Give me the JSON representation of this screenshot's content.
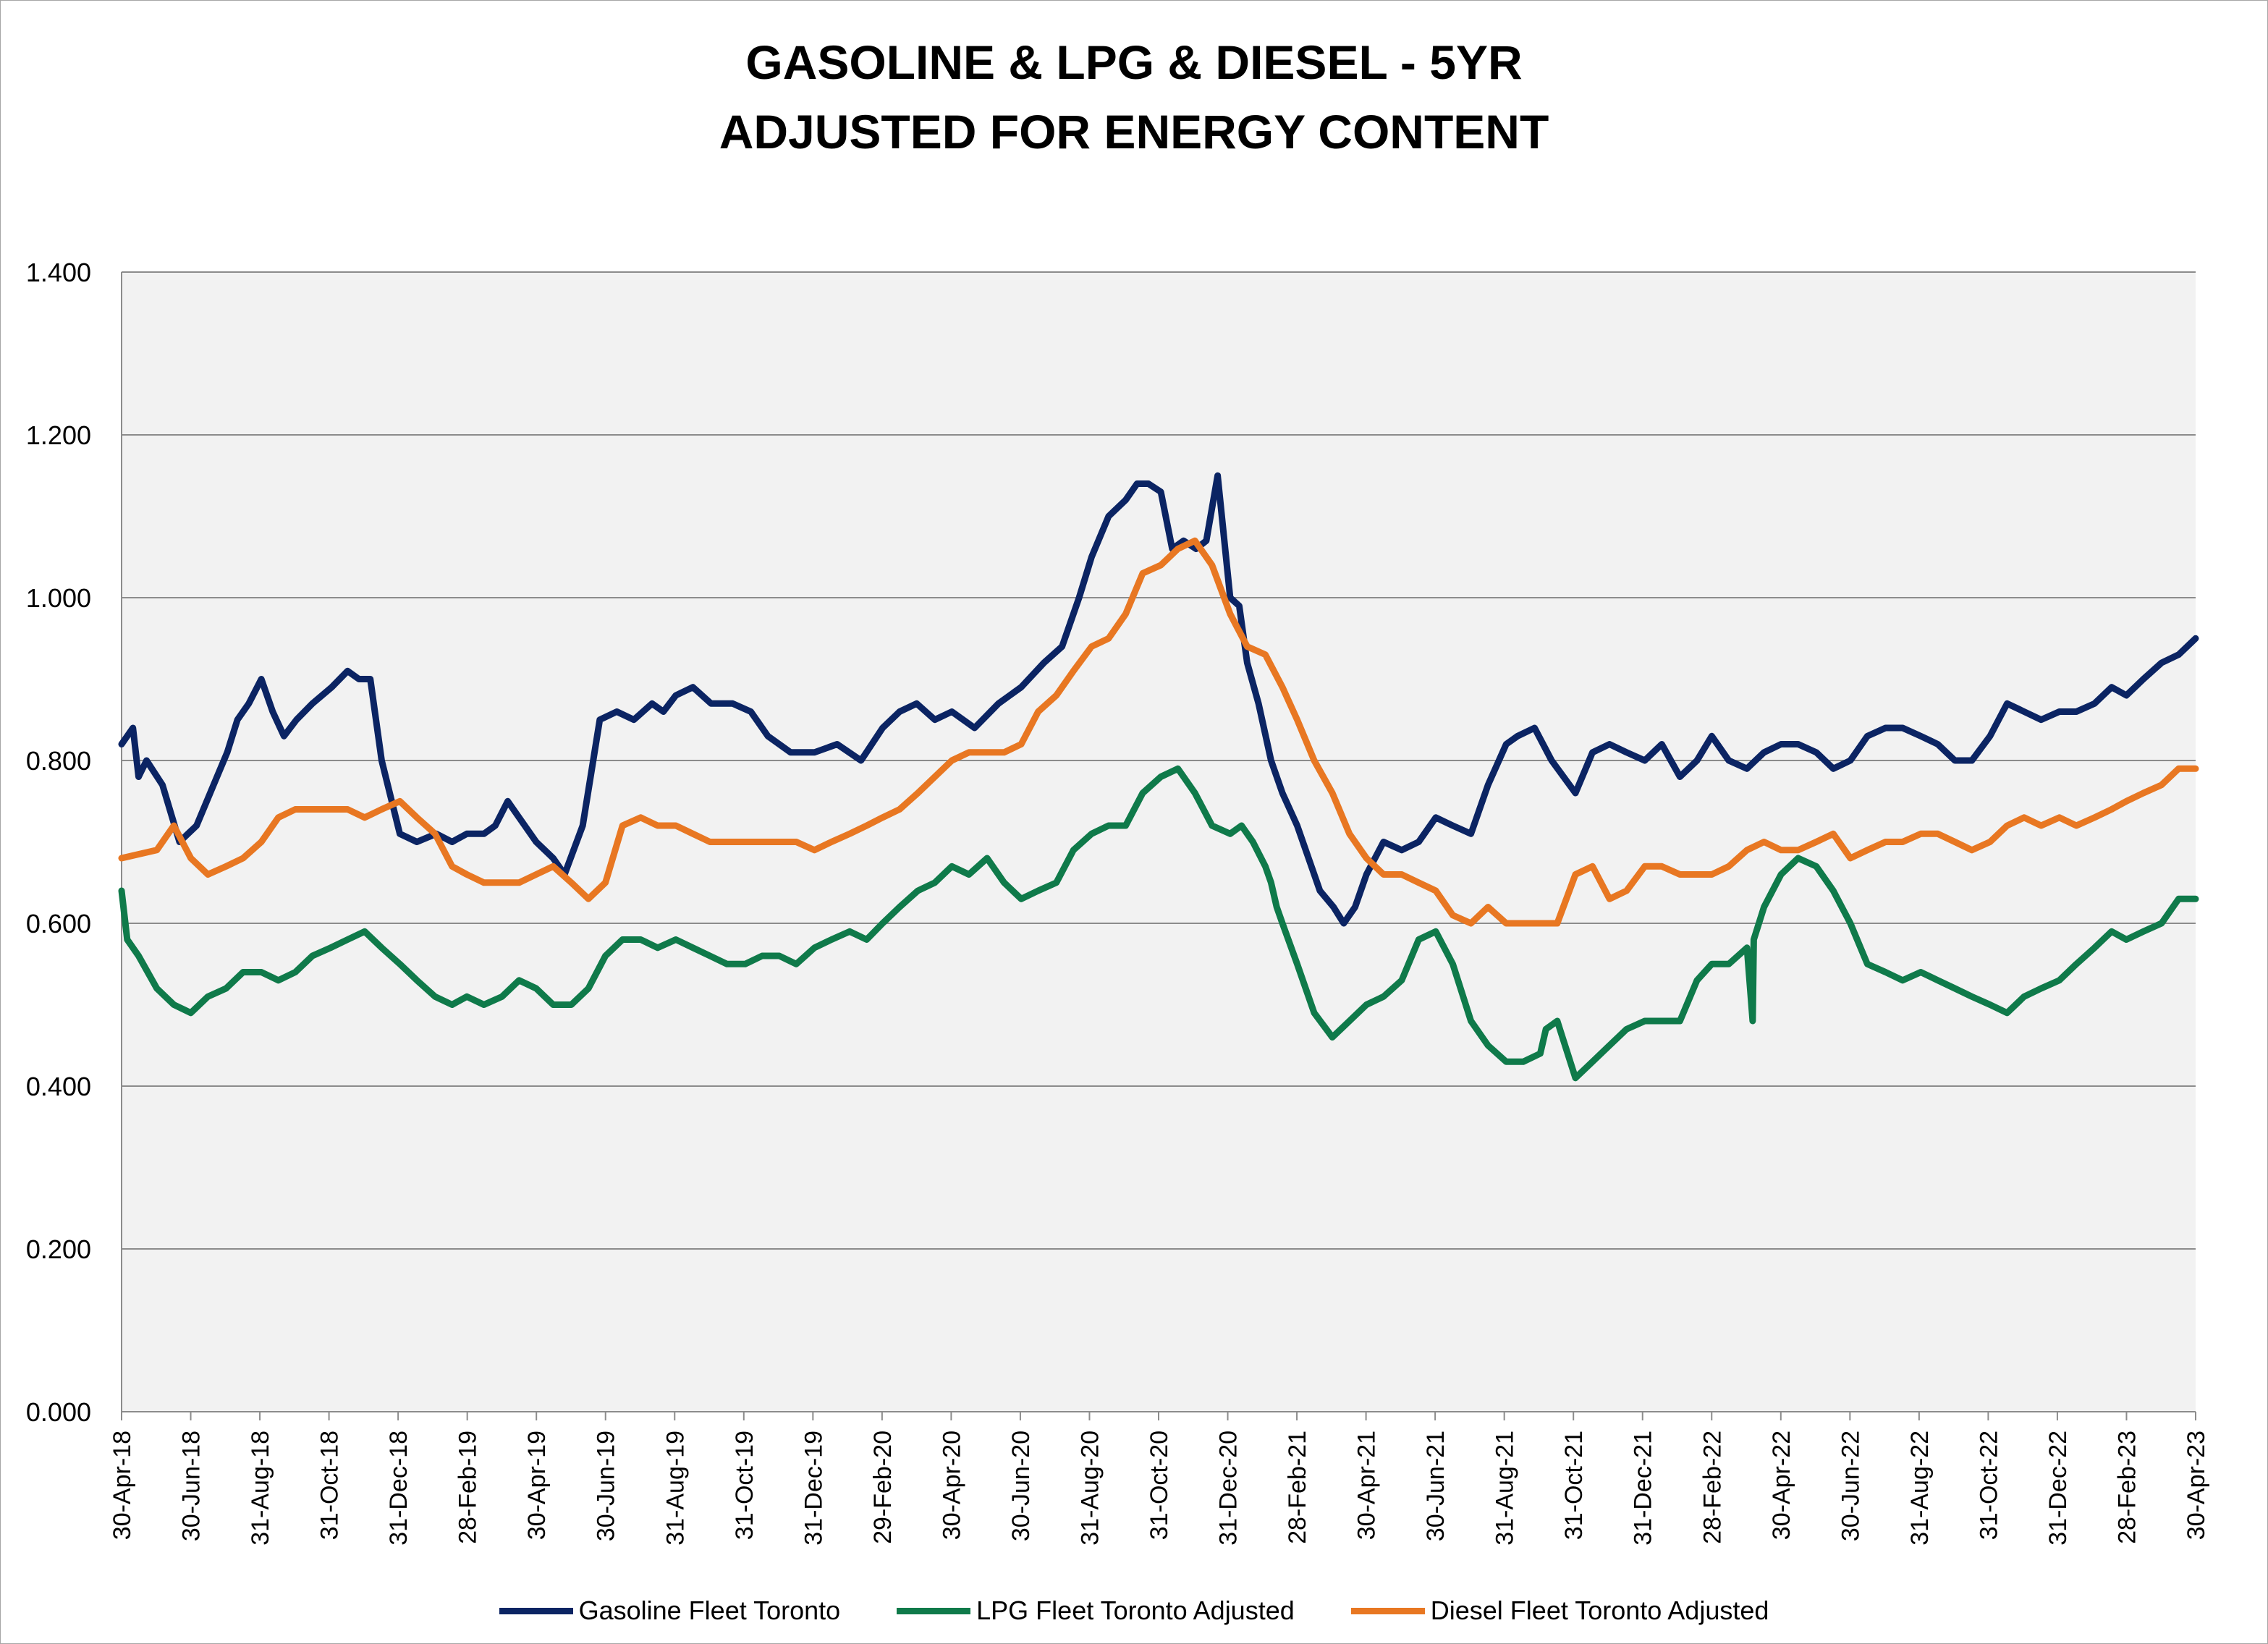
{
  "chart_data": {
    "type": "line",
    "title": "GASOLINE & LPG & DIESEL - 5YR",
    "subtitle": "ADJUSTED FOR ENERGY CONTENT",
    "xlabel": "",
    "ylabel": "",
    "ylim": [
      0,
      1.4
    ],
    "yticks": [
      "0.000",
      "0.200",
      "0.400",
      "0.600",
      "0.800",
      "1.000",
      "1.200",
      "1.400"
    ],
    "xticks": [
      "30-Apr-18",
      "30-Jun-18",
      "31-Aug-18",
      "31-Oct-18",
      "31-Dec-18",
      "28-Feb-19",
      "30-Apr-19",
      "30-Jun-19",
      "31-Aug-19",
      "31-Oct-19",
      "31-Dec-19",
      "29-Feb-20",
      "30-Apr-20",
      "30-Jun-20",
      "31-Aug-20",
      "31-Oct-20",
      "31-Dec-20",
      "28-Feb-21",
      "30-Apr-21",
      "30-Jun-21",
      "31-Aug-21",
      "31-Oct-21",
      "31-Dec-21",
      "28-Feb-22",
      "30-Apr-22",
      "30-Jun-22",
      "31-Aug-22",
      "31-Oct-22",
      "31-Dec-22",
      "28-Feb-23",
      "30-Apr-23"
    ],
    "grid": true,
    "plot_background": "#f2f2f2",
    "legend_position": "bottom",
    "series": [
      {
        "name": "Gasoline Fleet Toronto",
        "color": "#0b2463",
        "x": [
          "2018-04-30",
          "2018-05-10",
          "2018-05-15",
          "2018-05-22",
          "2018-06-05",
          "2018-06-20",
          "2018-07-05",
          "2018-07-20",
          "2018-08-01",
          "2018-08-10",
          "2018-08-20",
          "2018-08-31",
          "2018-09-10",
          "2018-09-20",
          "2018-10-01",
          "2018-10-15",
          "2018-11-01",
          "2018-11-15",
          "2018-11-25",
          "2018-12-05",
          "2018-12-15",
          "2018-12-31",
          "2019-01-15",
          "2019-02-01",
          "2019-02-15",
          "2019-02-28",
          "2019-03-15",
          "2019-03-25",
          "2019-04-05",
          "2019-04-15",
          "2019-04-30",
          "2019-05-15",
          "2019-05-25",
          "2019-06-10",
          "2019-06-25",
          "2019-07-10",
          "2019-07-25",
          "2019-08-10",
          "2019-08-20",
          "2019-08-31",
          "2019-09-15",
          "2019-10-01",
          "2019-10-20",
          "2019-11-05",
          "2019-11-20",
          "2019-12-10",
          "2019-12-31",
          "2020-01-20",
          "2020-02-10",
          "2020-02-29",
          "2020-03-15",
          "2020-03-30",
          "2020-04-15",
          "2020-04-30",
          "2020-05-20",
          "2020-06-10",
          "2020-06-30",
          "2020-07-20",
          "2020-08-05",
          "2020-08-20",
          "2020-08-31",
          "2020-09-15",
          "2020-09-30",
          "2020-10-10",
          "2020-10-20",
          "2020-10-31",
          "2020-11-10",
          "2020-11-20",
          "2020-12-01",
          "2020-12-10",
          "2020-12-20",
          "2020-12-31",
          "2021-01-08",
          "2021-01-15",
          "2021-01-25",
          "2021-02-05",
          "2021-02-15",
          "2021-02-28",
          "2021-03-10",
          "2021-03-20",
          "2021-04-01",
          "2021-04-10",
          "2021-04-20",
          "2021-04-30",
          "2021-05-15",
          "2021-05-31",
          "2021-06-15",
          "2021-06-30",
          "2021-07-15",
          "2021-07-31",
          "2021-08-15",
          "2021-08-31",
          "2021-09-10",
          "2021-09-25",
          "2021-10-10",
          "2021-10-31",
          "2021-11-15",
          "2021-11-30",
          "2021-12-15",
          "2021-12-31",
          "2022-01-15",
          "2022-01-31",
          "2022-02-15",
          "2022-02-28",
          "2022-03-15",
          "2022-03-31",
          "2022-04-15",
          "2022-04-30",
          "2022-05-15",
          "2022-05-31",
          "2022-06-15",
          "2022-06-30",
          "2022-07-15",
          "2022-07-31",
          "2022-08-15",
          "2022-08-31",
          "2022-09-15",
          "2022-09-30",
          "2022-10-15",
          "2022-10-31",
          "2022-11-15",
          "2022-11-30",
          "2022-12-15",
          "2022-12-31",
          "2023-01-15",
          "2023-01-31",
          "2023-02-15",
          "2023-02-28",
          "2023-03-15",
          "2023-03-31",
          "2023-04-15",
          "2023-04-30"
        ],
        "y": [
          0.82,
          0.84,
          0.78,
          0.8,
          0.77,
          0.7,
          0.72,
          0.77,
          0.81,
          0.85,
          0.87,
          0.9,
          0.86,
          0.83,
          0.85,
          0.87,
          0.89,
          0.91,
          0.9,
          0.9,
          0.8,
          0.71,
          0.7,
          0.71,
          0.7,
          0.71,
          0.71,
          0.72,
          0.75,
          0.73,
          0.7,
          0.68,
          0.66,
          0.72,
          0.85,
          0.86,
          0.85,
          0.87,
          0.86,
          0.88,
          0.89,
          0.87,
          0.87,
          0.86,
          0.83,
          0.81,
          0.81,
          0.82,
          0.8,
          0.84,
          0.86,
          0.87,
          0.85,
          0.86,
          0.84,
          0.87,
          0.89,
          0.92,
          0.94,
          1.0,
          1.05,
          1.1,
          1.12,
          1.14,
          1.14,
          1.13,
          1.06,
          1.07,
          1.06,
          1.07,
          1.15,
          1.0,
          0.99,
          0.92,
          0.87,
          0.8,
          0.76,
          0.72,
          0.68,
          0.64,
          0.62,
          0.6,
          0.62,
          0.66,
          0.7,
          0.69,
          0.7,
          0.73,
          0.72,
          0.71,
          0.77,
          0.82,
          0.83,
          0.84,
          0.8,
          0.76,
          0.81,
          0.82,
          0.81,
          0.8,
          0.82,
          0.78,
          0.8,
          0.83,
          0.8,
          0.79,
          0.81,
          0.82,
          0.82,
          0.81,
          0.79,
          0.8,
          0.83,
          0.84,
          0.84,
          0.83,
          0.82,
          0.8,
          0.8,
          0.83,
          0.87,
          0.86,
          0.85,
          0.86,
          0.86,
          0.87,
          0.89,
          0.88,
          0.9,
          0.92,
          0.93,
          0.95
        ]
      },
      {
        "name": "LPG Fleet Toronto Adjusted",
        "color": "#0f7a4a",
        "x": [
          "2018-04-30",
          "2018-05-05",
          "2018-05-15",
          "2018-05-31",
          "2018-06-15",
          "2018-06-30",
          "2018-07-15",
          "2018-07-31",
          "2018-08-15",
          "2018-08-31",
          "2018-09-15",
          "2018-09-30",
          "2018-10-15",
          "2018-10-31",
          "2018-11-15",
          "2018-11-30",
          "2018-12-15",
          "2018-12-31",
          "2019-01-15",
          "2019-01-31",
          "2019-02-15",
          "2019-02-28",
          "2019-03-15",
          "2019-03-31",
          "2019-04-15",
          "2019-04-30",
          "2019-05-15",
          "2019-05-31",
          "2019-06-15",
          "2019-06-30",
          "2019-07-15",
          "2019-07-31",
          "2019-08-15",
          "2019-08-31",
          "2019-09-15",
          "2019-09-30",
          "2019-10-15",
          "2019-10-31",
          "2019-11-15",
          "2019-11-30",
          "2019-12-15",
          "2019-12-31",
          "2020-01-15",
          "2020-01-31",
          "2020-02-15",
          "2020-02-29",
          "2020-03-15",
          "2020-03-31",
          "2020-04-15",
          "2020-04-30",
          "2020-05-15",
          "2020-05-31",
          "2020-06-15",
          "2020-06-30",
          "2020-07-15",
          "2020-07-31",
          "2020-08-15",
          "2020-08-31",
          "2020-09-15",
          "2020-09-30",
          "2020-10-15",
          "2020-10-31",
          "2020-11-15",
          "2020-11-30",
          "2020-12-15",
          "2020-12-31",
          "2021-01-10",
          "2021-01-20",
          "2021-01-31",
          "2021-02-05",
          "2021-02-10",
          "2021-02-15",
          "2021-02-28",
          "2021-03-15",
          "2021-03-31",
          "2021-04-15",
          "2021-04-30",
          "2021-05-15",
          "2021-05-31",
          "2021-06-15",
          "2021-06-30",
          "2021-07-15",
          "2021-07-31",
          "2021-08-15",
          "2021-08-31",
          "2021-09-15",
          "2021-09-30",
          "2021-10-05",
          "2021-10-15",
          "2021-10-31",
          "2021-11-15",
          "2021-11-30",
          "2021-12-15",
          "2021-12-31",
          "2022-01-15",
          "2022-01-31",
          "2022-02-15",
          "2022-02-28",
          "2022-03-15",
          "2022-03-31",
          "2022-04-05",
          "2022-04-06",
          "2022-04-15",
          "2022-04-30",
          "2022-05-15",
          "2022-05-31",
          "2022-06-15",
          "2022-06-30",
          "2022-07-15",
          "2022-07-31",
          "2022-08-15",
          "2022-08-31",
          "2022-09-15",
          "2022-09-30",
          "2022-10-15",
          "2022-10-31",
          "2022-11-15",
          "2022-11-30",
          "2022-12-15",
          "2022-12-31",
          "2023-01-15",
          "2023-01-31",
          "2023-02-15",
          "2023-02-28",
          "2023-03-15",
          "2023-03-31",
          "2023-04-15",
          "2023-04-30"
        ],
        "y": [
          0.64,
          0.58,
          0.56,
          0.52,
          0.5,
          0.49,
          0.51,
          0.52,
          0.54,
          0.54,
          0.53,
          0.54,
          0.56,
          0.57,
          0.58,
          0.59,
          0.57,
          0.55,
          0.53,
          0.51,
          0.5,
          0.51,
          0.5,
          0.51,
          0.53,
          0.52,
          0.5,
          0.5,
          0.52,
          0.56,
          0.58,
          0.58,
          0.57,
          0.58,
          0.57,
          0.56,
          0.55,
          0.55,
          0.56,
          0.56,
          0.55,
          0.57,
          0.58,
          0.59,
          0.58,
          0.6,
          0.62,
          0.64,
          0.65,
          0.67,
          0.66,
          0.68,
          0.65,
          0.63,
          0.64,
          0.65,
          0.69,
          0.71,
          0.72,
          0.72,
          0.76,
          0.78,
          0.79,
          0.76,
          0.72,
          0.71,
          0.72,
          0.7,
          0.67,
          0.65,
          0.62,
          0.6,
          0.55,
          0.49,
          0.46,
          0.48,
          0.5,
          0.51,
          0.53,
          0.58,
          0.59,
          0.55,
          0.48,
          0.45,
          0.43,
          0.43,
          0.44,
          0.47,
          0.48,
          0.41,
          0.43,
          0.45,
          0.47,
          0.48,
          0.48,
          0.48,
          0.53,
          0.55,
          0.55,
          0.57,
          0.48,
          0.58,
          0.62,
          0.66,
          0.68,
          0.67,
          0.64,
          0.6,
          0.55,
          0.54,
          0.53,
          0.54,
          0.53,
          0.52,
          0.51,
          0.5,
          0.49,
          0.51,
          0.52,
          0.53,
          0.55,
          0.57,
          0.59,
          0.58,
          0.59,
          0.6,
          0.63,
          0.63
        ]
      },
      {
        "name": "Diesel Fleet Toronto Adjusted",
        "color": "#e87722",
        "x": [
          "2018-04-30",
          "2018-05-31",
          "2018-06-15",
          "2018-06-30",
          "2018-07-15",
          "2018-07-31",
          "2018-08-15",
          "2018-08-31",
          "2018-09-15",
          "2018-09-30",
          "2018-10-15",
          "2018-10-31",
          "2018-11-15",
          "2018-11-30",
          "2018-12-15",
          "2018-12-31",
          "2019-01-15",
          "2019-01-31",
          "2019-02-15",
          "2019-02-28",
          "2019-03-15",
          "2019-03-31",
          "2019-04-15",
          "2019-04-30",
          "2019-05-15",
          "2019-05-31",
          "2019-06-15",
          "2019-06-30",
          "2019-07-15",
          "2019-07-31",
          "2019-08-15",
          "2019-08-31",
          "2019-09-15",
          "2019-09-30",
          "2019-10-15",
          "2019-10-31",
          "2019-11-15",
          "2019-11-30",
          "2019-12-15",
          "2019-12-31",
          "2020-01-15",
          "2020-01-31",
          "2020-02-15",
          "2020-02-29",
          "2020-03-15",
          "2020-03-31",
          "2020-04-15",
          "2020-04-30",
          "2020-05-15",
          "2020-05-31",
          "2020-06-15",
          "2020-06-30",
          "2020-07-15",
          "2020-07-31",
          "2020-08-15",
          "2020-08-31",
          "2020-09-15",
          "2020-09-30",
          "2020-10-15",
          "2020-10-31",
          "2020-11-15",
          "2020-11-30",
          "2020-12-15",
          "2020-12-31",
          "2021-01-15",
          "2021-01-31",
          "2021-02-15",
          "2021-02-28",
          "2021-03-15",
          "2021-03-31",
          "2021-04-15",
          "2021-04-30",
          "2021-05-15",
          "2021-05-31",
          "2021-06-15",
          "2021-06-30",
          "2021-07-15",
          "2021-07-31",
          "2021-08-15",
          "2021-08-31",
          "2021-09-15",
          "2021-09-30",
          "2021-10-15",
          "2021-10-31",
          "2021-11-15",
          "2021-11-30",
          "2021-12-15",
          "2021-12-31",
          "2022-01-15",
          "2022-01-31",
          "2022-02-15",
          "2022-02-28",
          "2022-03-15",
          "2022-03-31",
          "2022-04-15",
          "2022-04-30",
          "2022-05-15",
          "2022-05-31",
          "2022-06-15",
          "2022-06-30",
          "2022-07-15",
          "2022-07-31",
          "2022-08-15",
          "2022-08-31",
          "2022-09-15",
          "2022-09-30",
          "2022-10-15",
          "2022-10-31",
          "2022-11-15",
          "2022-11-30",
          "2022-12-15",
          "2022-12-31",
          "2023-01-15",
          "2023-01-31",
          "2023-02-15",
          "2023-02-28",
          "2023-03-15",
          "2023-03-31",
          "2023-04-15",
          "2023-04-30"
        ],
        "y": [
          0.68,
          0.69,
          0.72,
          0.68,
          0.66,
          0.67,
          0.68,
          0.7,
          0.73,
          0.74,
          0.74,
          0.74,
          0.74,
          0.73,
          0.74,
          0.75,
          0.73,
          0.71,
          0.67,
          0.66,
          0.65,
          0.65,
          0.65,
          0.66,
          0.67,
          0.65,
          0.63,
          0.65,
          0.72,
          0.73,
          0.72,
          0.72,
          0.71,
          0.7,
          0.7,
          0.7,
          0.7,
          0.7,
          0.7,
          0.69,
          0.7,
          0.71,
          0.72,
          0.73,
          0.74,
          0.76,
          0.78,
          0.8,
          0.81,
          0.81,
          0.81,
          0.82,
          0.86,
          0.88,
          0.91,
          0.94,
          0.95,
          0.98,
          1.03,
          1.04,
          1.06,
          1.07,
          1.04,
          0.98,
          0.94,
          0.93,
          0.89,
          0.85,
          0.8,
          0.76,
          0.71,
          0.68,
          0.66,
          0.66,
          0.65,
          0.64,
          0.61,
          0.6,
          0.62,
          0.6,
          0.6,
          0.6,
          0.6,
          0.66,
          0.67,
          0.63,
          0.64,
          0.67,
          0.67,
          0.66,
          0.66,
          0.66,
          0.67,
          0.69,
          0.7,
          0.69,
          0.69,
          0.7,
          0.71,
          0.68,
          0.69,
          0.7,
          0.7,
          0.71,
          0.71,
          0.7,
          0.69,
          0.7,
          0.72,
          0.73,
          0.72,
          0.73,
          0.72,
          0.73,
          0.74,
          0.75,
          0.76,
          0.77,
          0.79,
          0.79
        ]
      }
    ]
  }
}
